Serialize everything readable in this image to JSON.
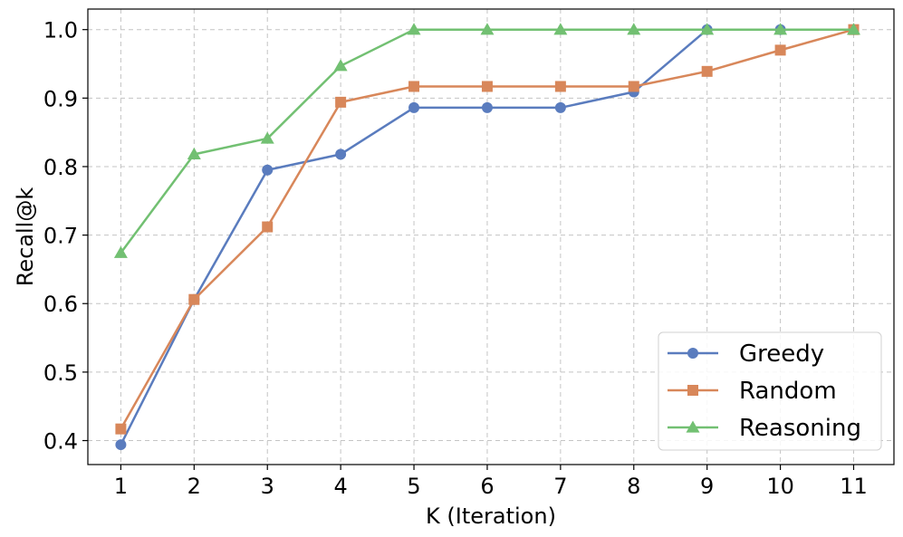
{
  "chart_data": {
    "type": "line",
    "x": [
      1,
      2,
      3,
      4,
      5,
      6,
      7,
      8,
      9,
      10,
      11
    ],
    "xlabel": "K (Iteration)",
    "ylabel": "Recall@k",
    "xlim": [
      0.55,
      11.55
    ],
    "ylim": [
      0.365,
      1.03
    ],
    "yticks": [
      "0.4",
      "0.5",
      "0.6",
      "0.7",
      "0.8",
      "0.9",
      "1.0"
    ],
    "ytick_values": [
      0.4,
      0.5,
      0.6,
      0.7,
      0.8,
      0.9,
      1.0
    ],
    "xticks": [
      "1",
      "2",
      "3",
      "4",
      "5",
      "6",
      "7",
      "8",
      "9",
      "10",
      "11"
    ],
    "grid": true,
    "legend_position": "bottom-right",
    "series": [
      {
        "name": "Greedy",
        "color": "#5a7cbe",
        "marker": "circle",
        "values": [
          0.394,
          0.606,
          0.795,
          0.818,
          0.886,
          0.886,
          0.886,
          0.909,
          1.0,
          1.0,
          1.0
        ]
      },
      {
        "name": "Random",
        "color": "#d8875a",
        "marker": "square",
        "values": [
          0.417,
          0.606,
          0.712,
          0.894,
          0.917,
          0.917,
          0.917,
          0.917,
          0.939,
          0.97,
          1.0
        ]
      },
      {
        "name": "Reasoning",
        "color": "#72c072",
        "marker": "triangle",
        "values": [
          0.674,
          0.818,
          0.841,
          0.947,
          1.0,
          1.0,
          1.0,
          1.0,
          1.0,
          1.0,
          1.0
        ]
      }
    ]
  }
}
